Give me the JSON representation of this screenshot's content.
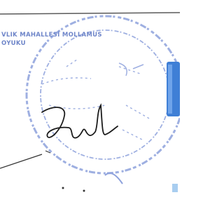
{
  "stamp": {
    "line1": "VLIK MAHALLESİ MOLLAMUS",
    "line2": "OYUKU"
  }
}
